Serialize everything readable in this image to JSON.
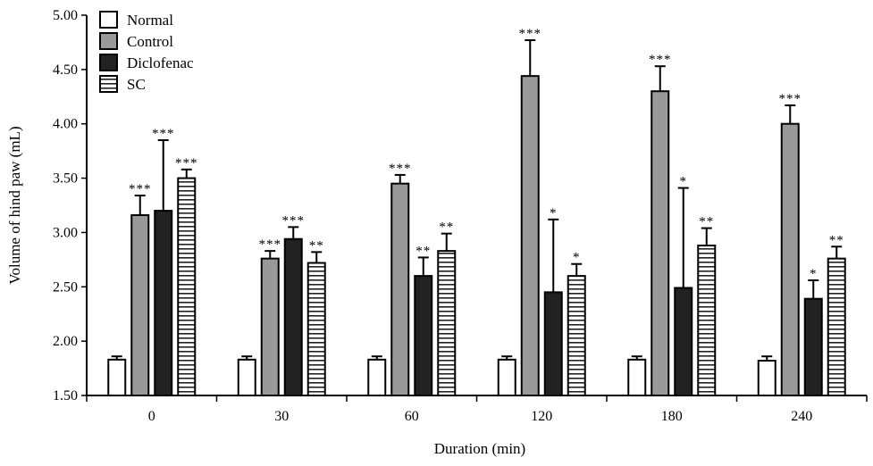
{
  "chart_data": {
    "type": "bar",
    "title": "",
    "xlabel": "Duration (min)",
    "ylabel": "Volume of hind paw (mL)",
    "ylim": [
      1.5,
      5.0
    ],
    "yticks": [
      "1.50",
      "2.00",
      "2.50",
      "3.00",
      "3.50",
      "4.00",
      "4.50",
      "5.00"
    ],
    "categories": [
      "0",
      "30",
      "60",
      "120",
      "180",
      "240"
    ],
    "legend_placement": "top-left",
    "grid": false,
    "series": [
      {
        "name": "Normal",
        "fill": "#ffffff",
        "pattern": "none",
        "values": [
          1.83,
          1.83,
          1.83,
          1.83,
          1.83,
          1.82
        ],
        "error": [
          0.03,
          0.03,
          0.03,
          0.03,
          0.03,
          0.04
        ],
        "significance": [
          "",
          "",
          "",
          "",
          "",
          ""
        ]
      },
      {
        "name": "Control",
        "fill": "#999999",
        "pattern": "none",
        "values": [
          3.16,
          2.76,
          3.45,
          4.44,
          4.3,
          4.0
        ],
        "error": [
          0.18,
          0.07,
          0.08,
          0.33,
          0.23,
          0.17
        ],
        "significance": [
          "***",
          "***",
          "***",
          "***",
          "***",
          "***"
        ]
      },
      {
        "name": "Diclofenac",
        "fill": "#222222",
        "pattern": "none",
        "values": [
          3.2,
          2.94,
          2.6,
          2.45,
          2.49,
          2.39
        ],
        "error": [
          0.65,
          0.11,
          0.17,
          0.67,
          0.92,
          0.17
        ],
        "significance": [
          "***",
          "***",
          "**",
          "*",
          "*",
          "*"
        ]
      },
      {
        "name": "SC",
        "fill": "#ffffff",
        "pattern": "horizontal-lines",
        "values": [
          3.5,
          2.72,
          2.83,
          2.6,
          2.88,
          2.76
        ],
        "error": [
          0.08,
          0.1,
          0.16,
          0.11,
          0.16,
          0.11
        ],
        "significance": [
          "***",
          "**",
          "**",
          "*",
          "**",
          "**"
        ]
      }
    ]
  }
}
